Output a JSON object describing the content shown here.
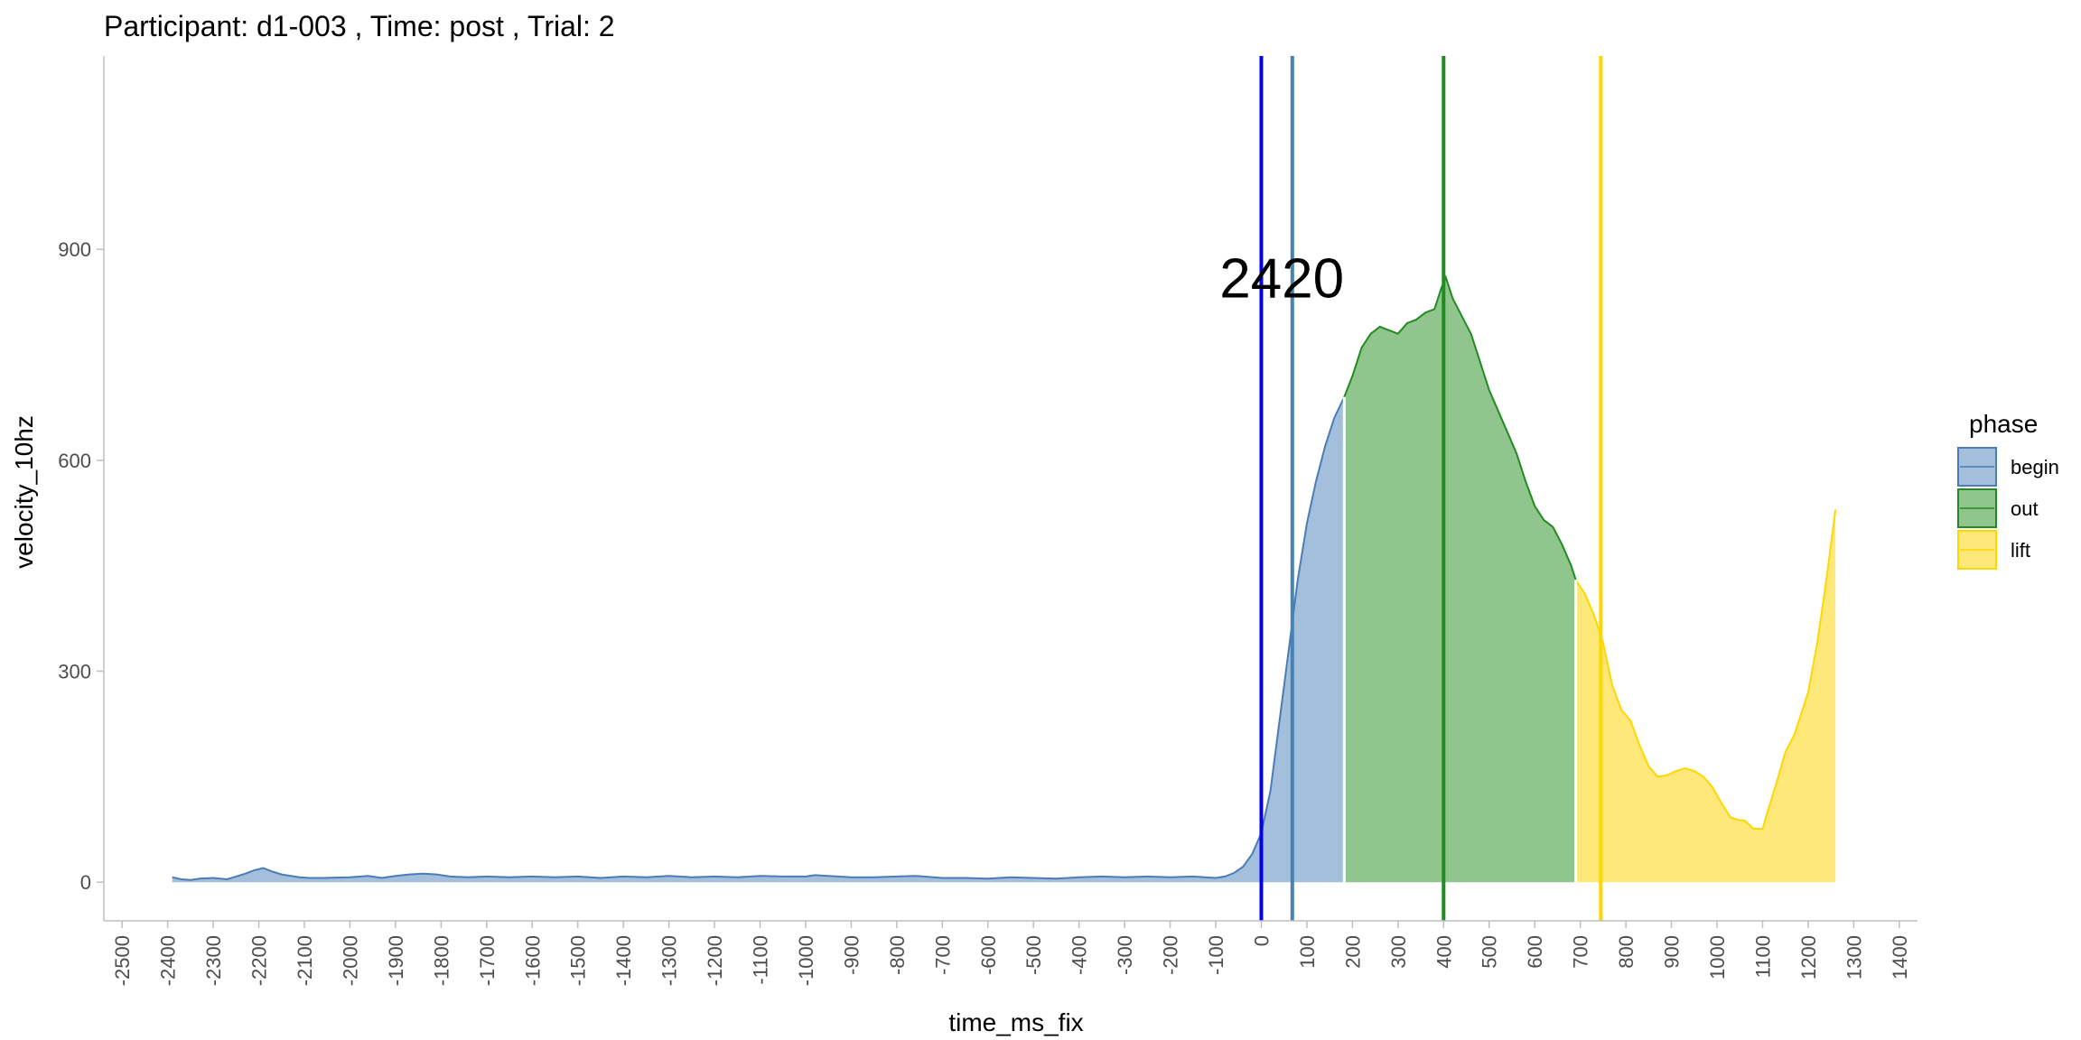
{
  "chart_data": {
    "type": "area",
    "title": "Participant:  d1-003 , Time: post , Trial:  2",
    "xlabel": "time_ms_fix",
    "ylabel": "velocity_10hz",
    "xlim": [
      -2540,
      1440
    ],
    "ylim": [
      -55,
      1175
    ],
    "x_ticks": [
      -2500,
      -2400,
      -2300,
      -2200,
      -2100,
      -2000,
      -1900,
      -1800,
      -1700,
      -1600,
      -1500,
      -1400,
      -1300,
      -1200,
      -1100,
      -1000,
      -900,
      -800,
      -700,
      -600,
      -500,
      -400,
      -300,
      -200,
      -100,
      0,
      100,
      200,
      300,
      400,
      500,
      600,
      700,
      800,
      900,
      1000,
      1100,
      1200,
      1300,
      1400
    ],
    "y_ticks": [
      0,
      300,
      600,
      900
    ],
    "grid": false,
    "annotation": {
      "text": "2420",
      "x": 45,
      "y": 860
    },
    "legend": {
      "title": "phase",
      "position": "right",
      "entries": [
        {
          "label": "begin",
          "fill": "#a3bfdb",
          "stroke": "#4a7db5"
        },
        {
          "label": "out",
          "fill": "#90c58e",
          "stroke": "#228b22"
        },
        {
          "label": "lift",
          "fill": "#ffe87a",
          "stroke": "#ffd700"
        }
      ]
    },
    "vlines": [
      {
        "x": 0,
        "color": "#0000ee"
      },
      {
        "x": 68,
        "color": "#4682b4"
      },
      {
        "x": 400,
        "color": "#228b22"
      },
      {
        "x": 745,
        "color": "#ffd700"
      }
    ],
    "series": [
      {
        "name": "begin",
        "fill": "#a3bfdb",
        "stroke": "#4a7db5",
        "x": [
          -2390,
          -2370,
          -2350,
          -2330,
          -2300,
          -2270,
          -2250,
          -2230,
          -2210,
          -2190,
          -2170,
          -2150,
          -2130,
          -2110,
          -2090,
          -2060,
          -2000,
          -1960,
          -1930,
          -1900,
          -1870,
          -1840,
          -1810,
          -1780,
          -1740,
          -1700,
          -1650,
          -1600,
          -1550,
          -1500,
          -1450,
          -1400,
          -1350,
          -1300,
          -1250,
          -1200,
          -1150,
          -1100,
          -1050,
          -1000,
          -980,
          -950,
          -900,
          -850,
          -800,
          -760,
          -700,
          -650,
          -600,
          -550,
          -500,
          -450,
          -400,
          -350,
          -300,
          -250,
          -200,
          -150,
          -100,
          -80,
          -60,
          -40,
          -20,
          0,
          20,
          40,
          60,
          80,
          100,
          120,
          140,
          160,
          182
        ],
        "y": [
          7,
          4,
          3,
          5,
          6,
          4,
          8,
          12,
          17,
          20,
          15,
          11,
          9,
          7,
          6,
          6,
          7,
          9,
          6,
          9,
          11,
          12,
          11,
          8,
          7,
          8,
          7,
          8,
          7,
          8,
          6,
          8,
          7,
          9,
          7,
          8,
          7,
          9,
          8,
          8,
          10,
          9,
          7,
          7,
          8,
          9,
          6,
          6,
          5,
          7,
          6,
          5,
          7,
          8,
          7,
          8,
          7,
          8,
          6,
          8,
          13,
          22,
          40,
          70,
          130,
          230,
          330,
          430,
          510,
          570,
          620,
          660,
          690
        ]
      },
      {
        "name": "out",
        "fill": "#90c58e",
        "stroke": "#228b22",
        "x": [
          182,
          200,
          220,
          240,
          260,
          280,
          300,
          320,
          340,
          360,
          380,
          395,
          405,
          420,
          440,
          460,
          480,
          500,
          520,
          540,
          560,
          580,
          600,
          620,
          640,
          660,
          680,
          690
        ],
        "y": [
          690,
          720,
          760,
          780,
          790,
          785,
          780,
          795,
          800,
          810,
          815,
          845,
          860,
          830,
          805,
          780,
          740,
          700,
          670,
          640,
          610,
          570,
          535,
          515,
          505,
          480,
          450,
          430
        ]
      },
      {
        "name": "lift",
        "fill": "#ffe87a",
        "stroke": "#ffd700",
        "x": [
          690,
          710,
          730,
          750,
          770,
          790,
          810,
          830,
          850,
          870,
          890,
          910,
          930,
          950,
          970,
          990,
          1010,
          1030,
          1050,
          1060,
          1080,
          1100,
          1110,
          1130,
          1150,
          1170,
          1200,
          1220,
          1240,
          1260
        ],
        "y": [
          430,
          410,
          380,
          340,
          280,
          245,
          230,
          195,
          165,
          150,
          152,
          158,
          162,
          158,
          150,
          135,
          112,
          92,
          88,
          88,
          76,
          76,
          98,
          140,
          185,
          210,
          270,
          340,
          430,
          530
        ]
      }
    ]
  }
}
